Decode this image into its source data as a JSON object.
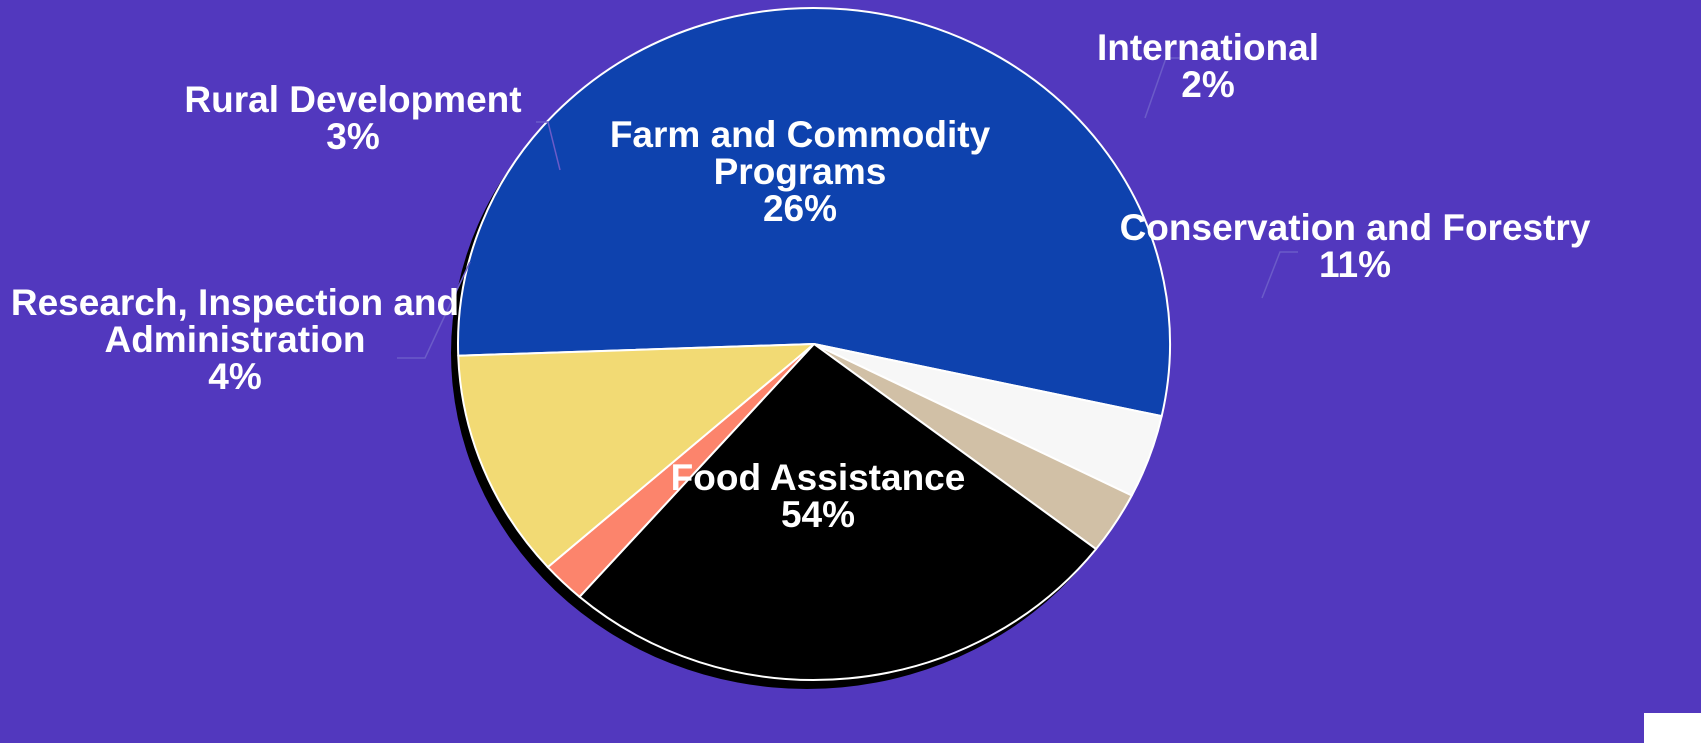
{
  "chart_data": {
    "type": "pie",
    "slices": [
      {
        "label": "Food Assistance",
        "value": 54,
        "pct_label": "54%",
        "color": "#0e42ae"
      },
      {
        "label": "Research, Inspection and Administration",
        "label_lines": [
          "Research, Inspection and",
          "Administration"
        ],
        "value": 4,
        "pct_label": "4%",
        "color": "#f7f7f7"
      },
      {
        "label": "Rural Development",
        "value": 3,
        "pct_label": "3%",
        "color": "#d1c0a6"
      },
      {
        "label": "Farm and Commodity Programs",
        "label_lines": [
          "Farm and Commodity",
          "Programs"
        ],
        "value": 26,
        "pct_label": "26%",
        "color": "#000000"
      },
      {
        "label": "International",
        "value": 2,
        "pct_label": "2%",
        "color": "#fc846c"
      },
      {
        "label": "Conservation and Forestry",
        "value": 11,
        "pct_label": "11%",
        "color": "#f2da74"
      }
    ],
    "colors": {
      "background": "#5238be",
      "shadow": "#000000",
      "label_text": "#ffffff"
    }
  }
}
